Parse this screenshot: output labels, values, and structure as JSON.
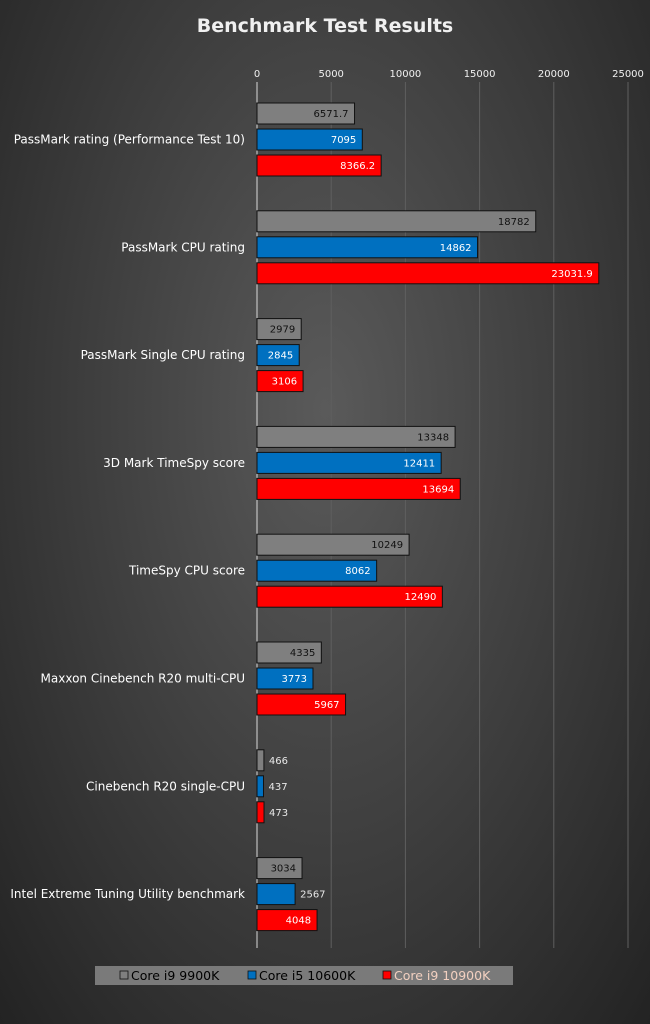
{
  "chart_data": {
    "type": "bar",
    "orientation": "horizontal",
    "title": "Benchmark Test Results",
    "xlim": [
      0,
      25000
    ],
    "xticks": [
      0,
      5000,
      10000,
      15000,
      20000,
      25000
    ],
    "x_axis_position": "top",
    "grid": true,
    "legend_position": "bottom",
    "categories": [
      "PassMark rating (Performance Test 10)",
      "PassMark CPU rating",
      "PassMark Single CPU rating",
      "3D Mark TimeSpy score",
      "TimeSpy CPU score",
      "Maxxon Cinebench R20 multi-CPU",
      "Cinebench R20 single-CPU",
      "Intel Extreme Tuning Utility benchmark"
    ],
    "series": [
      {
        "name": "Core i9 9900K",
        "color": "#7f7f7f",
        "value_labels": [
          "6571.7",
          "18782",
          "2979",
          "13348",
          "10249",
          "4335",
          "466",
          "3034"
        ],
        "values": [
          6571.7,
          18782,
          2979,
          13348,
          10249,
          4335,
          466,
          3034
        ]
      },
      {
        "name": "Core i5 10600K",
        "color": "#0070c0",
        "value_labels": [
          "7095",
          "14862",
          "2845",
          "12411",
          "8062",
          "3773",
          "437",
          "2567"
        ],
        "values": [
          7095,
          14862,
          2845,
          12411,
          8062,
          3773,
          437,
          2567
        ]
      },
      {
        "name": "Core i9 10900K",
        "color": "#ff0000",
        "value_labels": [
          "8366.2",
          "23031.9",
          "3106",
          "13694",
          "12490",
          "5967",
          "473",
          "4048"
        ],
        "values": [
          8366.2,
          23031.9,
          3106,
          13694,
          12490,
          5967,
          473,
          4048
        ]
      }
    ]
  }
}
